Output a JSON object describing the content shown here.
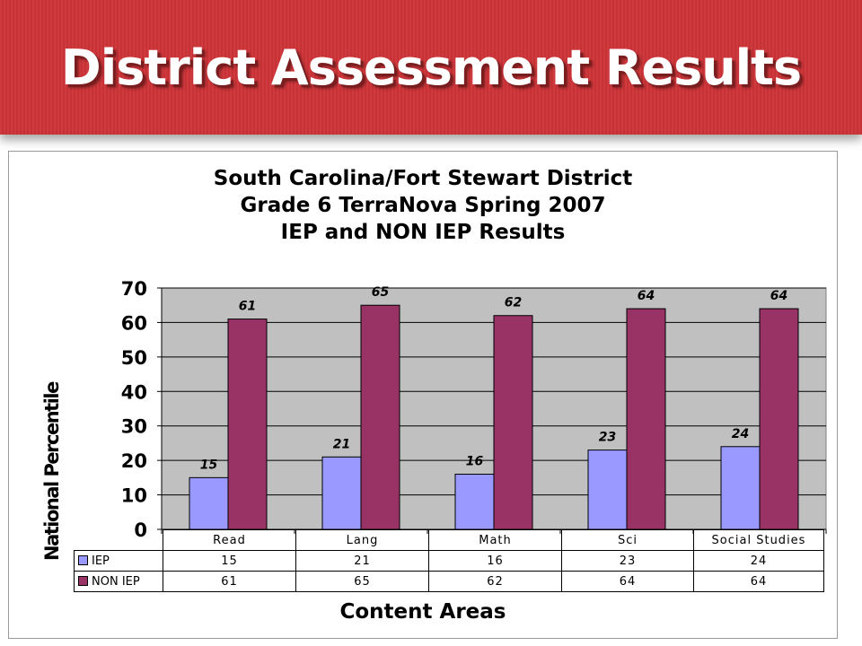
{
  "slide": {
    "title": "District Assessment Results"
  },
  "chart_data": {
    "type": "bar",
    "title_lines": [
      "South Carolina/Fort Stewart District",
      "Grade 6 TerraNova Spring 2007",
      "IEP and NON IEP Results"
    ],
    "categories": [
      "Read",
      "Lang",
      "Math",
      "Sci",
      "Social Studies"
    ],
    "series": [
      {
        "name": "IEP",
        "values": [
          15,
          21,
          16,
          23,
          24
        ],
        "color": "#9999ff"
      },
      {
        "name": "NON IEP",
        "values": [
          61,
          65,
          62,
          64,
          64
        ],
        "color": "#993366"
      }
    ],
    "xlabel": "Content Areas",
    "ylabel": "National Percentile",
    "ylim": [
      0,
      70
    ],
    "yticks": [
      0,
      10,
      20,
      30,
      40,
      50,
      60,
      70
    ],
    "grid": true,
    "plot_background": "#c0c0c0",
    "legend": "data-table"
  }
}
